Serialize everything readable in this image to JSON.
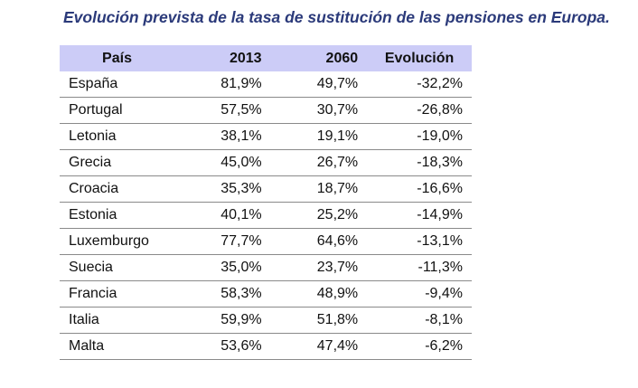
{
  "chart_data": {
    "type": "table",
    "title": "Evolución prevista de la tasa de sustitución de las pensiones en Europa.",
    "columns": [
      "País",
      "2013",
      "2060",
      "Evolución"
    ],
    "rows": [
      [
        "España",
        "81,9%",
        "49,7%",
        "-32,2%"
      ],
      [
        "Portugal",
        "57,5%",
        "30,7%",
        "-26,8%"
      ],
      [
        "Letonia",
        "38,1%",
        "19,1%",
        "-19,0%"
      ],
      [
        "Grecia",
        "45,0%",
        "26,7%",
        "-18,3%"
      ],
      [
        "Croacia",
        "35,3%",
        "18,7%",
        "-16,6%"
      ],
      [
        "Estonia",
        "40,1%",
        "25,2%",
        "-14,9%"
      ],
      [
        "Luxemburgo",
        "77,7%",
        "64,6%",
        "-13,1%"
      ],
      [
        "Suecia",
        "35,0%",
        "23,7%",
        "-11,3%"
      ],
      [
        "Francia",
        "58,3%",
        "48,9%",
        "-9,4%"
      ],
      [
        "Italia",
        "59,9%",
        "51,8%",
        "-8,1%"
      ],
      [
        "Malta",
        "53,6%",
        "47,4%",
        "-6,2%"
      ]
    ]
  },
  "colors": {
    "title": "#2b3a7a",
    "header_background": "#ccccf7",
    "row_border": "#8a8a8a"
  }
}
